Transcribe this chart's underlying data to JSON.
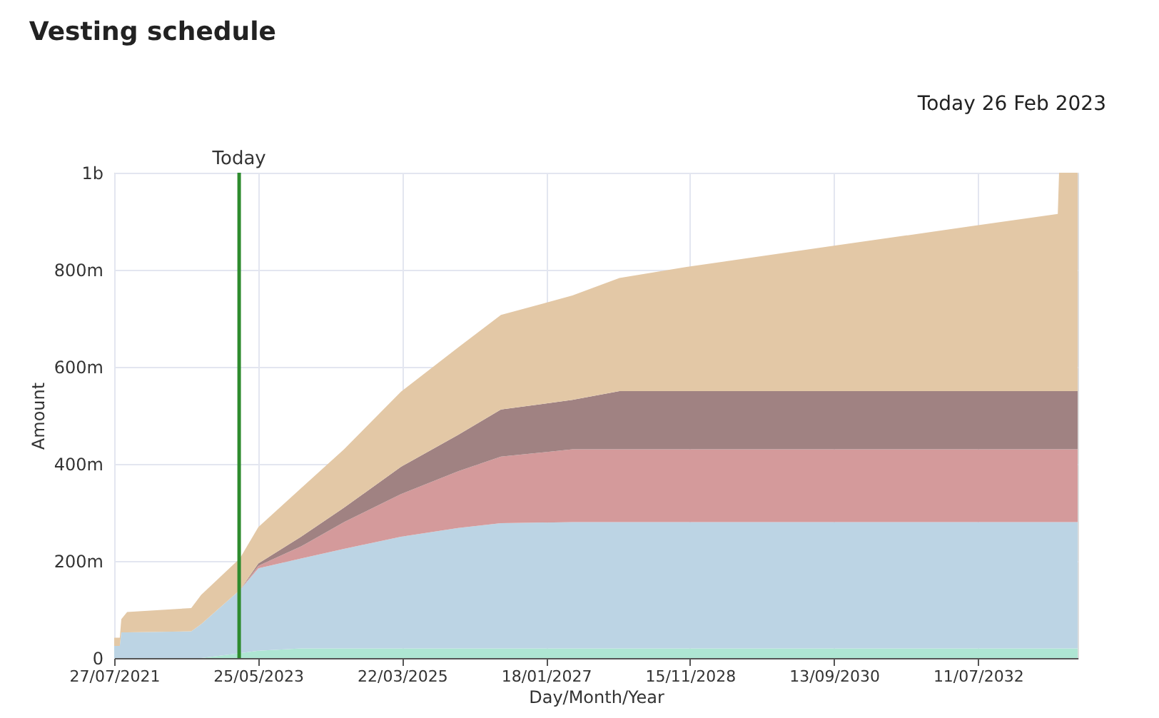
{
  "chart_data": {
    "type": "area",
    "stacked": true,
    "title": "Vesting schedule",
    "xlabel": "Day/Month/Year",
    "ylabel": "Amount",
    "annotations": [
      "Today 26 Feb 2023"
    ],
    "x": [
      "2021-07-27",
      "2021-08-22",
      "2021-08-29",
      "2021-09-25",
      "2022-07-19",
      "2022-09-03",
      "2023-03-01",
      "2023-05-26",
      "2023-12-10",
      "2024-06-26",
      "2025-03-17",
      "2025-12-07",
      "2026-06-23",
      "2027-05-20",
      "2027-12-24",
      "2028-10-30",
      "2030-08-21",
      "2032-06-13",
      "2033-07-16",
      "2033-07-22",
      "2033-10-16"
    ],
    "series": [
      {
        "color": "#aee6d3",
        "values": [
          0,
          0,
          0,
          0,
          0,
          0,
          10000000,
          15000000,
          20000000,
          20000000,
          20000000,
          20000000,
          20000000,
          20000000,
          20000000,
          20000000,
          20000000,
          20000000,
          20000000,
          20000000,
          20000000
        ]
      },
      {
        "color": "#bcd4e4",
        "values": [
          25000000,
          25000000,
          53000000,
          53000000,
          55000000,
          70000000,
          130000000,
          170000000,
          185000000,
          205000000,
          230000000,
          248000000,
          258000000,
          260000000,
          260000000,
          260000000,
          260000000,
          260000000,
          260000000,
          260000000,
          260000000
        ]
      },
      {
        "color": "#d49a9b",
        "values": [
          0,
          0,
          0,
          0,
          0,
          0,
          0,
          5000000,
          25000000,
          55000000,
          88000000,
          117000000,
          137000000,
          150000000,
          150000000,
          150000000,
          150000000,
          150000000,
          150000000,
          150000000,
          150000000
        ]
      },
      {
        "color": "#a08282",
        "values": [
          0,
          0,
          0,
          0,
          0,
          0,
          0,
          5000000,
          20000000,
          30000000,
          56000000,
          75000000,
          97000000,
          102000000,
          120000000,
          120000000,
          120000000,
          120000000,
          120000000,
          120000000,
          120000000
        ]
      },
      {
        "color": "#e3c8a6",
        "values": [
          17000000,
          17000000,
          27000000,
          42000000,
          48000000,
          60000000,
          65000000,
          75000000,
          100000000,
          120000000,
          155000000,
          180000000,
          195000000,
          215000000,
          233000000,
          256000000,
          298000000,
          340000000,
          365000000,
          450000000,
          450000000
        ]
      }
    ],
    "xlim": [
      "2021-07-27",
      "2033-10-16"
    ],
    "xticks": [
      {
        "value": "2021-07-27",
        "label": "27/07/2021"
      },
      {
        "value": "2023-05-25",
        "label": "25/05/2023"
      },
      {
        "value": "2025-03-22",
        "label": "22/03/2025"
      },
      {
        "value": "2027-01-18",
        "label": "18/01/2027"
      },
      {
        "value": "2028-11-15",
        "label": "15/11/2028"
      },
      {
        "value": "2030-09-13",
        "label": "13/09/2030"
      },
      {
        "value": "2032-07-11",
        "label": "11/07/2032"
      }
    ],
    "ylim": [
      0,
      1000000000
    ],
    "yticks": [
      {
        "value": 0,
        "label": "0"
      },
      {
        "value": 200000000,
        "label": "200m"
      },
      {
        "value": 400000000,
        "label": "400m"
      },
      {
        "value": 600000000,
        "label": "600m"
      },
      {
        "value": 800000000,
        "label": "800m"
      },
      {
        "value": 1000000000,
        "label": "1b"
      }
    ],
    "ref_lines": [
      {
        "axis": "x",
        "value": "2023-02-26",
        "label": "Today",
        "color": "#2e8b2e"
      }
    ],
    "grid": true
  }
}
